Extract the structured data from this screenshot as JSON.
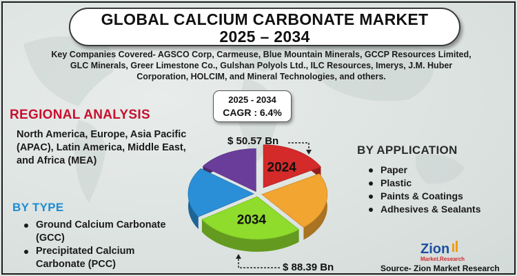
{
  "title": {
    "line1": "GLOBAL  CALCIUM CARBONATE MARKET",
    "line2": "2025 – 2034"
  },
  "companies": "Key Companies Covered- AGSCO Corp, Carmeuse, Blue Mountain Minerals, GCCP Resources Limited, GLC Minerals, Greer Limestone Co., Gulshan Polyols Ltd., ILC Resources, Imerys, J.M. Huber Corporation, HOLCIM, and Mineral Technologies, and others.",
  "cagr": {
    "period": "2025 - 2034",
    "label": "CAGR : 6.4%"
  },
  "regional": {
    "title": "REGIONAL ANALYSIS",
    "text": "North America, Europe, Asia Pacific (APAC), Latin America, Middle East, and Africa (MEA)"
  },
  "by_type": {
    "title": "BY TYPE",
    "items": [
      "Ground Calcium Carbonate (GCC)",
      "Precipitated Calcium Carbonate (PCC)"
    ]
  },
  "by_application": {
    "title": "BY APPLICATION",
    "items": [
      "Paper",
      "Plastic",
      "Paints & Coatings",
      "Adhesives & Sealants"
    ]
  },
  "source": "Source- Zion Market Research",
  "logo": {
    "word": "Zion",
    "sub": "Market.Research"
  },
  "colors": {
    "red": "#d42a2a",
    "orange": "#f2a531",
    "green": "#8fdc2c",
    "blue": "#2a8fd6",
    "purple": "#6a3d9a",
    "title_red": "#c8102e",
    "type_blue": "#1e8bd2"
  },
  "chart_data": {
    "type": "pie",
    "title": "",
    "value_unit": "USD Bn",
    "values_by_year": [
      {
        "year": "2024",
        "value": 50.57,
        "display": "$ 50.57 Bn"
      },
      {
        "year": "2034",
        "value": 88.39,
        "display": "$ 88.39 Bn"
      }
    ],
    "slices": [
      {
        "label": "2024",
        "color": "#d42a2a",
        "share": 0.17
      },
      {
        "label": "",
        "color": "#f2a531",
        "share": 0.22
      },
      {
        "label": "2034",
        "color": "#8fdc2c",
        "share": 0.27
      },
      {
        "label": "",
        "color": "#2a8fd6",
        "share": 0.19
      },
      {
        "label": "",
        "color": "#6a3d9a",
        "share": 0.15
      }
    ]
  }
}
